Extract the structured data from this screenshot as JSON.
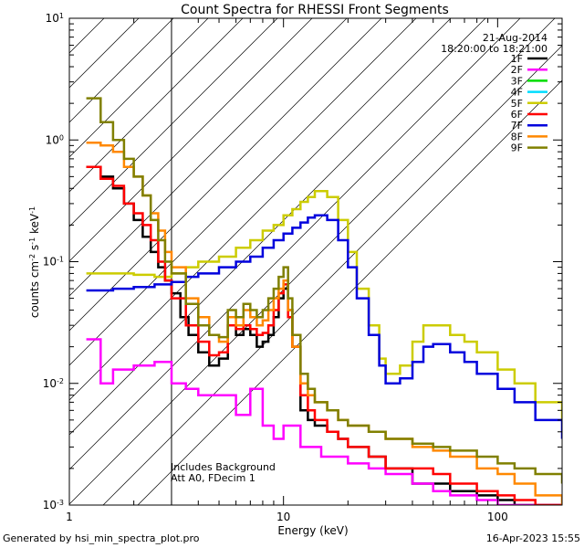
{
  "chart_data": {
    "type": "line",
    "title": "Count Spectra for RHESSI Front Segments",
    "xlabel": "Energy (keV)",
    "ylabel": "counts cm",
    "ylabel_sup1": "-2",
    "ylabel_mid": " s",
    "ylabel_sup2": "-1",
    "ylabel_end": " keV",
    "ylabel_sup3": "-1",
    "xscale": "log",
    "yscale": "log",
    "xlim": [
      1,
      200
    ],
    "ylim": [
      0.001,
      10
    ],
    "x_ticks": [
      {
        "value": 1,
        "label": "1"
      },
      {
        "value": 10,
        "label": "10"
      },
      {
        "value": 100,
        "label": "100"
      }
    ],
    "y_ticks": [
      {
        "value": 0.001,
        "base": "10",
        "exp": "-3"
      },
      {
        "value": 0.01,
        "base": "10",
        "exp": "-2"
      },
      {
        "value": 0.1,
        "base": "10",
        "exp": "-1"
      },
      {
        "value": 1,
        "base": "10",
        "exp": "0"
      },
      {
        "value": 10,
        "base": "10",
        "exp": "1"
      }
    ],
    "hatched_region": [
      1,
      3
    ],
    "date": "21-Aug-2014",
    "time_range": "18:20:00 to 18:21:00",
    "annotations": [
      "Includes Background",
      "Att A0, FDecim 1"
    ],
    "legend_position": "top-right",
    "series": [
      {
        "name": "1F",
        "color": "#000000",
        "x": [
          1.2,
          1.4,
          1.6,
          1.8,
          2.0,
          2.2,
          2.4,
          2.6,
          2.8,
          3.0,
          3.3,
          3.6,
          4,
          4.5,
          5,
          5.5,
          6,
          6.5,
          7,
          7.5,
          8,
          8.5,
          9,
          9.5,
          10,
          10.5,
          11,
          12,
          13,
          14,
          16,
          18,
          20,
          25,
          30,
          40,
          50,
          60,
          80,
          100,
          120,
          150,
          200
        ],
        "values": [
          0.6,
          0.5,
          0.4,
          0.3,
          0.22,
          0.16,
          0.12,
          0.09,
          0.07,
          0.055,
          0.035,
          0.025,
          0.018,
          0.014,
          0.016,
          0.03,
          0.025,
          0.028,
          0.025,
          0.02,
          0.022,
          0.025,
          0.035,
          0.05,
          0.06,
          0.04,
          0.02,
          0.006,
          0.005,
          0.0045,
          0.004,
          0.0035,
          0.003,
          0.0025,
          0.002,
          0.0015,
          0.0015,
          0.0013,
          0.0012,
          0.0011,
          0.001,
          0.001,
          0.001
        ]
      },
      {
        "name": "2F",
        "color": "#ff00ff",
        "x": [
          1.2,
          1.4,
          1.6,
          2.0,
          2.5,
          3.0,
          3.5,
          4,
          5,
          6,
          7,
          8,
          9,
          10,
          12,
          15,
          20,
          25,
          30,
          40,
          50,
          60,
          80,
          100,
          150,
          200
        ],
        "values": [
          0.023,
          0.01,
          0.013,
          0.014,
          0.015,
          0.01,
          0.009,
          0.008,
          0.008,
          0.0055,
          0.009,
          0.0045,
          0.0035,
          0.0045,
          0.003,
          0.0025,
          0.0022,
          0.002,
          0.0018,
          0.0015,
          0.0013,
          0.0012,
          0.0011,
          0.001,
          0.001,
          0.001
        ]
      },
      {
        "name": "3F",
        "color": "#00dd00",
        "x": [],
        "values": []
      },
      {
        "name": "4F",
        "color": "#00ddff",
        "x": [],
        "values": []
      },
      {
        "name": "5F",
        "color": "#cccc00",
        "x": [
          1.2,
          1.6,
          2,
          2.5,
          3,
          3.5,
          4,
          5,
          6,
          7,
          8,
          9,
          10,
          11,
          12,
          13,
          14,
          15,
          16,
          18,
          20,
          22,
          25,
          28,
          30,
          35,
          40,
          45,
          50,
          60,
          70,
          80,
          100,
          120,
          150,
          200
        ],
        "values": [
          0.08,
          0.08,
          0.078,
          0.075,
          0.08,
          0.09,
          0.1,
          0.11,
          0.13,
          0.15,
          0.18,
          0.2,
          0.24,
          0.27,
          0.31,
          0.34,
          0.38,
          0.38,
          0.34,
          0.22,
          0.12,
          0.06,
          0.03,
          0.016,
          0.012,
          0.014,
          0.022,
          0.03,
          0.03,
          0.025,
          0.022,
          0.018,
          0.013,
          0.01,
          0.007,
          0.005
        ]
      },
      {
        "name": "6F",
        "color": "#ff0000",
        "x": [
          1.2,
          1.4,
          1.6,
          1.8,
          2.0,
          2.2,
          2.4,
          2.6,
          2.8,
          3.0,
          3.5,
          4,
          4.5,
          5,
          5.5,
          6,
          6.5,
          7,
          7.5,
          8,
          8.5,
          9,
          9.5,
          10,
          10.5,
          11,
          12,
          13,
          14,
          16,
          18,
          20,
          25,
          30,
          40,
          50,
          60,
          80,
          100,
          120,
          150,
          200
        ],
        "values": [
          0.6,
          0.48,
          0.42,
          0.3,
          0.25,
          0.2,
          0.15,
          0.1,
          0.07,
          0.05,
          0.03,
          0.022,
          0.017,
          0.018,
          0.03,
          0.028,
          0.03,
          0.028,
          0.025,
          0.026,
          0.03,
          0.04,
          0.055,
          0.065,
          0.035,
          0.02,
          0.008,
          0.006,
          0.005,
          0.004,
          0.0035,
          0.003,
          0.0025,
          0.002,
          0.002,
          0.0018,
          0.0015,
          0.0013,
          0.0012,
          0.0011,
          0.001,
          0.001
        ]
      },
      {
        "name": "7F",
        "color": "#0000dd",
        "x": [
          1.2,
          1.6,
          2,
          2.5,
          3,
          3.5,
          4,
          5,
          6,
          7,
          8,
          9,
          10,
          11,
          12,
          13,
          14,
          15,
          16,
          18,
          20,
          22,
          25,
          28,
          30,
          35,
          40,
          45,
          50,
          60,
          70,
          80,
          100,
          120,
          150,
          200
        ],
        "values": [
          0.058,
          0.06,
          0.062,
          0.065,
          0.068,
          0.075,
          0.08,
          0.09,
          0.1,
          0.11,
          0.13,
          0.15,
          0.17,
          0.19,
          0.21,
          0.23,
          0.24,
          0.24,
          0.22,
          0.15,
          0.09,
          0.05,
          0.025,
          0.014,
          0.01,
          0.011,
          0.015,
          0.02,
          0.021,
          0.018,
          0.015,
          0.012,
          0.009,
          0.007,
          0.005,
          0.0035
        ]
      },
      {
        "name": "8F",
        "color": "#ff8800",
        "x": [
          1.2,
          1.4,
          1.6,
          1.8,
          2.0,
          2.2,
          2.4,
          2.6,
          2.8,
          3.0,
          3.5,
          4,
          4.5,
          5,
          5.5,
          6,
          6.5,
          7,
          7.5,
          8,
          8.5,
          9,
          9.5,
          10,
          10.5,
          11,
          12,
          13,
          14,
          16,
          18,
          20,
          25,
          30,
          40,
          50,
          60,
          80,
          100,
          120,
          150,
          200
        ],
        "values": [
          0.95,
          0.9,
          0.8,
          0.6,
          0.5,
          0.35,
          0.25,
          0.18,
          0.12,
          0.09,
          0.05,
          0.035,
          0.025,
          0.022,
          0.035,
          0.03,
          0.04,
          0.035,
          0.03,
          0.033,
          0.04,
          0.05,
          0.06,
          0.07,
          0.04,
          0.02,
          0.01,
          0.008,
          0.007,
          0.006,
          0.005,
          0.0045,
          0.004,
          0.0035,
          0.003,
          0.0028,
          0.0025,
          0.002,
          0.0018,
          0.0015,
          0.0012,
          0.001
        ]
      },
      {
        "name": "9F",
        "color": "#808000",
        "x": [
          1.2,
          1.4,
          1.6,
          1.8,
          2.0,
          2.2,
          2.4,
          2.6,
          2.8,
          3.0,
          3.5,
          4,
          4.5,
          5,
          5.5,
          6,
          6.5,
          7,
          7.5,
          8,
          8.5,
          9,
          9.5,
          10,
          10.5,
          11,
          12,
          13,
          14,
          16,
          18,
          20,
          25,
          30,
          40,
          50,
          60,
          80,
          100,
          120,
          150,
          200
        ],
        "values": [
          2.2,
          1.4,
          1.0,
          0.7,
          0.5,
          0.35,
          0.22,
          0.15,
          0.1,
          0.08,
          0.045,
          0.03,
          0.025,
          0.024,
          0.04,
          0.035,
          0.045,
          0.04,
          0.035,
          0.04,
          0.05,
          0.06,
          0.075,
          0.09,
          0.05,
          0.025,
          0.012,
          0.009,
          0.007,
          0.006,
          0.005,
          0.0045,
          0.004,
          0.0035,
          0.0032,
          0.003,
          0.0028,
          0.0025,
          0.0022,
          0.002,
          0.0018,
          0.0015
        ]
      }
    ]
  },
  "footer": {
    "left": "Generated by hsi_min_spectra_plot.pro",
    "right": "16-Apr-2023 15:55"
  }
}
